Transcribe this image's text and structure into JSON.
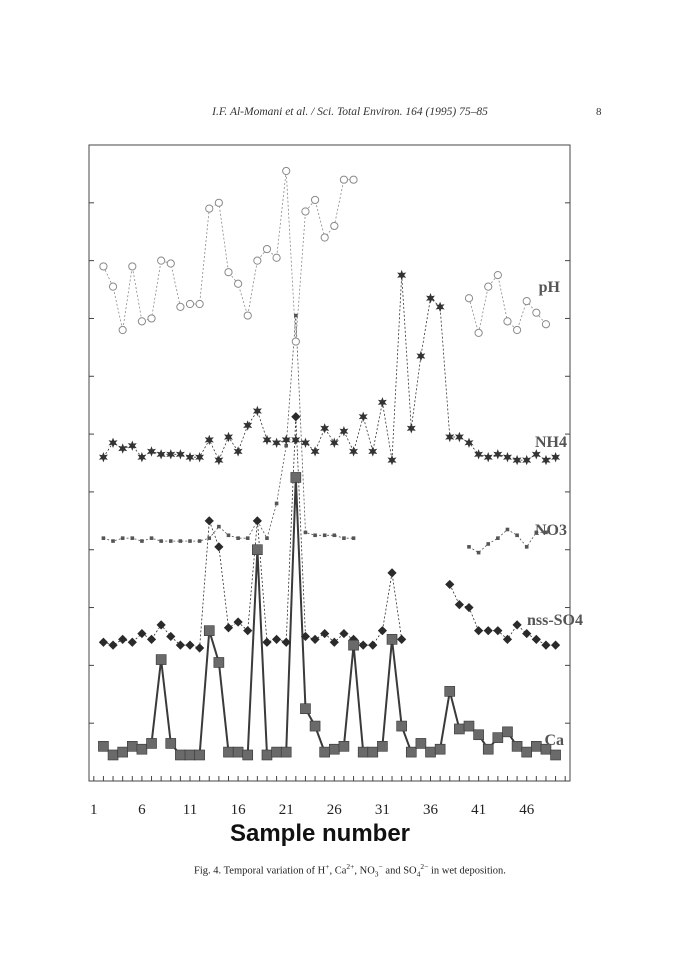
{
  "page": {
    "running_head": "I.F. Al-Momani et al. / Sci. Total Environ. 164 (1995) 75–85",
    "page_number": "8"
  },
  "caption": {
    "prefix": "Fig. 4.  Temporal variation of H",
    "h_sup": "+",
    "ca": ", Ca",
    "ca_sup": "2+",
    "no3": ", NO",
    "no3_sub": "3",
    "no3_sup": "−",
    "so4": " and SO",
    "so4_sub": "4",
    "so4_sup": "2−",
    "suffix": "  in wet deposition."
  },
  "chart_data": {
    "type": "line",
    "xlabel": "Sample number",
    "xlim": [
      0.5,
      50.5
    ],
    "xticks": [
      1,
      6,
      11,
      16,
      21,
      26,
      31,
      36,
      41,
      46
    ],
    "ylim": [
      0,
      11
    ],
    "yaxis_tick_labels_shown": false,
    "grid": false,
    "series": [
      {
        "name": "pH",
        "marker": "open-circle",
        "color": "#8a8a8a",
        "values": [
          null,
          8.9,
          8.55,
          7.8,
          8.9,
          7.95,
          8.0,
          9.0,
          8.95,
          8.2,
          8.25,
          8.25,
          9.9,
          10.0,
          8.8,
          8.6,
          8.05,
          9.0,
          9.2,
          9.05,
          10.55,
          7.6,
          9.85,
          10.05,
          9.4,
          9.6,
          10.4,
          10.4,
          null,
          null,
          null,
          null,
          null,
          null,
          null,
          null,
          null,
          null,
          null,
          8.35,
          7.75,
          8.55,
          8.75,
          7.95,
          7.8,
          8.3,
          8.1,
          7.9
        ]
      },
      {
        "name": "NH4",
        "marker": "star",
        "color": "#333333",
        "values": [
          null,
          5.6,
          5.85,
          5.75,
          5.8,
          5.6,
          5.7,
          5.65,
          5.65,
          5.65,
          5.6,
          5.6,
          5.9,
          5.55,
          5.95,
          5.7,
          6.15,
          6.4,
          5.9,
          5.85,
          5.9,
          5.9,
          5.85,
          5.7,
          6.1,
          5.85,
          6.05,
          5.7,
          6.3,
          5.7,
          6.55,
          5.55,
          8.75,
          6.1,
          7.35,
          8.35,
          8.2,
          5.95,
          5.95,
          5.85,
          5.65,
          5.6,
          5.65,
          5.6,
          5.55,
          5.55,
          5.65,
          5.55,
          5.6
        ]
      },
      {
        "name": "NO3",
        "marker": "small-square",
        "color": "#555555",
        "values": [
          null,
          4.2,
          4.15,
          4.2,
          4.2,
          4.15,
          4.2,
          4.15,
          4.15,
          4.15,
          4.15,
          4.15,
          4.2,
          4.4,
          4.25,
          4.2,
          4.2,
          4.5,
          4.2,
          4.8,
          5.8,
          8.05,
          4.3,
          4.25,
          4.25,
          4.25,
          4.2,
          4.2,
          null,
          null,
          null,
          null,
          null,
          null,
          null,
          null,
          null,
          null,
          null,
          4.05,
          3.95,
          4.1,
          4.2,
          4.35,
          4.25,
          4.05,
          4.3,
          4.3
        ]
      },
      {
        "name": "nss-SO4",
        "marker": "diamond",
        "color": "#2a2a2a",
        "values": [
          null,
          2.4,
          2.35,
          2.45,
          2.4,
          2.55,
          2.45,
          2.7,
          2.5,
          2.35,
          2.35,
          2.3,
          4.5,
          4.05,
          2.65,
          2.75,
          2.6,
          4.5,
          2.4,
          2.45,
          2.4,
          6.3,
          2.5,
          2.45,
          2.55,
          2.4,
          2.55,
          2.45,
          2.35,
          2.35,
          2.6,
          3.6,
          2.45,
          null,
          null,
          null,
          null,
          3.4,
          3.05,
          3.0,
          2.6,
          2.6,
          2.6,
          2.45,
          2.7,
          2.55,
          2.45,
          2.35,
          2.35
        ]
      },
      {
        "name": "Ca",
        "marker": "filled-square",
        "color": "#3a3a3a",
        "values": [
          null,
          0.6,
          0.45,
          0.5,
          0.6,
          0.55,
          0.65,
          2.1,
          0.65,
          0.45,
          0.45,
          0.45,
          2.6,
          2.05,
          0.5,
          0.5,
          0.45,
          4.0,
          0.45,
          0.5,
          0.5,
          5.25,
          1.25,
          0.95,
          0.5,
          0.55,
          0.6,
          2.35,
          0.5,
          0.5,
          0.6,
          2.45,
          0.95,
          0.5,
          0.65,
          0.5,
          0.55,
          1.55,
          0.9,
          0.95,
          0.8,
          0.55,
          0.75,
          0.85,
          0.6,
          0.5,
          0.6,
          0.55,
          0.45
        ]
      }
    ]
  }
}
